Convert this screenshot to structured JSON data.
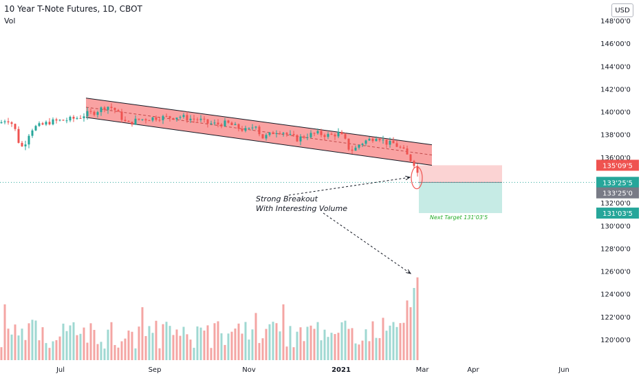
{
  "header": {
    "title": "10 Year T-Note Futures, 1D, CBOT",
    "indicator": "Vol"
  },
  "currency_button": "USD",
  "annotation": {
    "line1": "Strong Breakout",
    "line2": "With Interesting Volume"
  },
  "target_label": "Next Target 131'03'5",
  "colors": {
    "up": "#26a69a",
    "down": "#ef5350",
    "vol_up": "#9fd8d2",
    "vol_down": "#f4a5a3",
    "channel_fill": "#f67a7a",
    "stop_zone": "#fbd3d3",
    "target_zone": "#c6ebe5",
    "target_text": "#22ab26",
    "price_line": "#26a69a"
  },
  "chart_data": {
    "type": "candlestick",
    "symbol": "10 Year T-Note Futures",
    "timeframe": "1D",
    "exchange": "CBOT",
    "y_axis": {
      "ticks": [
        "148'00'0",
        "146'00'0",
        "144'00'0",
        "142'00'0",
        "140'00'0",
        "138'00'0",
        "136'00'0",
        "134'00'0",
        "132'00'0",
        "130'00'0",
        "128'00'0",
        "126'00'0",
        "124'00'0",
        "122'00'0",
        "120'00'0"
      ],
      "range": [
        118,
        149
      ]
    },
    "x_axis": {
      "ticks": [
        "Jul",
        "Sep",
        "Nov",
        "2021",
        "Mar",
        "Apr",
        "Jun"
      ]
    },
    "price_labels": [
      {
        "text": "135'09'5",
        "value": 135.3,
        "color": "#ef5350",
        "text_color": "#ffffff"
      },
      {
        "text": "133'25'5",
        "value": 133.8,
        "color": "#26a69a",
        "text_color": "#ffffff"
      },
      {
        "text": "133'25'0",
        "value": 133.78,
        "color": "#787b86",
        "text_color": "#ffffff",
        "offset": 1
      },
      {
        "text": "131'03'5",
        "value": 131.1,
        "color": "#26a69a",
        "text_color": "#ffffff"
      }
    ],
    "channel": {
      "upper": [
        [
          125,
          141.2
        ],
        [
          628,
          137.1
        ]
      ],
      "lower": [
        [
          125,
          139.5
        ],
        [
          628,
          135.3
        ]
      ],
      "mid": [
        [
          125,
          140.4
        ],
        [
          628,
          136.2
        ]
      ]
    },
    "position": {
      "entry": 133.8,
      "stop": 135.3,
      "target": 131.1,
      "x_start": 609,
      "x_end": 730
    },
    "price_path": [
      [
        0,
        139.0
      ],
      [
        10,
        139.4
      ],
      [
        20,
        138.8
      ],
      [
        28,
        137.2
      ],
      [
        34,
        136.8
      ],
      [
        40,
        137.9
      ],
      [
        48,
        138.6
      ],
      [
        60,
        138.8
      ],
      [
        72,
        139.1
      ],
      [
        85,
        139.2
      ],
      [
        100,
        139.3
      ],
      [
        115,
        139.5
      ],
      [
        125,
        139.8
      ],
      [
        135,
        139.9
      ],
      [
        145,
        140.2
      ],
      [
        155,
        140.5
      ],
      [
        165,
        140.3
      ],
      [
        175,
        139.6
      ],
      [
        185,
        138.9
      ],
      [
        200,
        139.3
      ],
      [
        215,
        139.4
      ],
      [
        230,
        139.5
      ],
      [
        245,
        139.5
      ],
      [
        260,
        139.6
      ],
      [
        275,
        139.4
      ],
      [
        290,
        139.3
      ],
      [
        300,
        139.0
      ],
      [
        315,
        138.9
      ],
      [
        330,
        139.0
      ],
      [
        345,
        138.6
      ],
      [
        360,
        138.3
      ],
      [
        372,
        138.9
      ],
      [
        380,
        137.7
      ],
      [
        390,
        137.9
      ],
      [
        400,
        138.3
      ],
      [
        410,
        138.3
      ],
      [
        420,
        137.9
      ],
      [
        432,
        137.6
      ],
      [
        445,
        137.9
      ],
      [
        460,
        138.1
      ],
      [
        470,
        138.0
      ],
      [
        480,
        137.9
      ],
      [
        492,
        138.1
      ],
      [
        500,
        137.7
      ],
      [
        507,
        136.8
      ],
      [
        514,
        136.6
      ],
      [
        522,
        137.1
      ],
      [
        530,
        137.4
      ],
      [
        540,
        137.6
      ],
      [
        548,
        137.9
      ],
      [
        556,
        137.5
      ],
      [
        564,
        137.2
      ],
      [
        572,
        137.2
      ],
      [
        580,
        136.9
      ],
      [
        588,
        136.5
      ],
      [
        595,
        135.9
      ],
      [
        601,
        135.6
      ],
      [
        606,
        134.9
      ],
      [
        610,
        133.8
      ]
    ],
    "volume_bars_count": 120,
    "volume_spikes": [
      {
        "at": 605,
        "height": 0.86
      },
      {
        "at": 601,
        "height": 0.75
      },
      {
        "at": 590,
        "height": 0.62
      },
      {
        "at": 597,
        "height": 0.55
      },
      {
        "at": 410,
        "height": 0.58
      },
      {
        "at": 370,
        "height": 0.49
      },
      {
        "at": 208,
        "height": 0.55
      },
      {
        "at": 7,
        "height": 0.58
      },
      {
        "at": 556,
        "height": 0.44
      },
      {
        "at": 500,
        "height": 0.41
      }
    ]
  }
}
